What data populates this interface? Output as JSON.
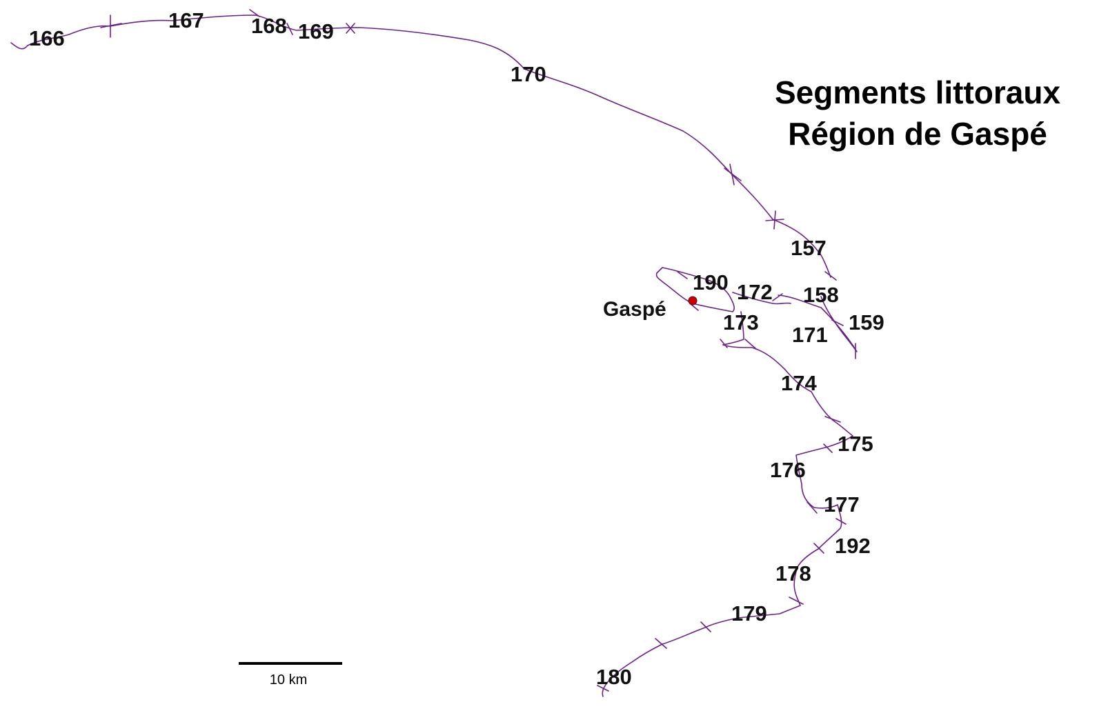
{
  "title": {
    "line1": "Segments littoraux",
    "line2": "Région de Gaspé"
  },
  "town": {
    "name": "Gaspé",
    "marker_color": "#cc0000"
  },
  "scale_bar": {
    "label": "10 km"
  },
  "colors": {
    "coastline": "#6b1f8a",
    "text": "#111111"
  },
  "segments": [
    {
      "id": "166",
      "label": "166"
    },
    {
      "id": "167",
      "label": "167"
    },
    {
      "id": "168",
      "label": "168"
    },
    {
      "id": "169",
      "label": "169"
    },
    {
      "id": "170",
      "label": "170"
    },
    {
      "id": "157",
      "label": "157"
    },
    {
      "id": "158",
      "label": "158"
    },
    {
      "id": "159",
      "label": "159"
    },
    {
      "id": "190",
      "label": "190"
    },
    {
      "id": "172",
      "label": "172"
    },
    {
      "id": "173",
      "label": "173"
    },
    {
      "id": "171",
      "label": "171"
    },
    {
      "id": "174",
      "label": "174"
    },
    {
      "id": "175",
      "label": "175"
    },
    {
      "id": "176",
      "label": "176"
    },
    {
      "id": "177",
      "label": "177"
    },
    {
      "id": "192",
      "label": "192"
    },
    {
      "id": "178",
      "label": "178"
    },
    {
      "id": "179",
      "label": "179"
    },
    {
      "id": "180",
      "label": "180"
    }
  ]
}
